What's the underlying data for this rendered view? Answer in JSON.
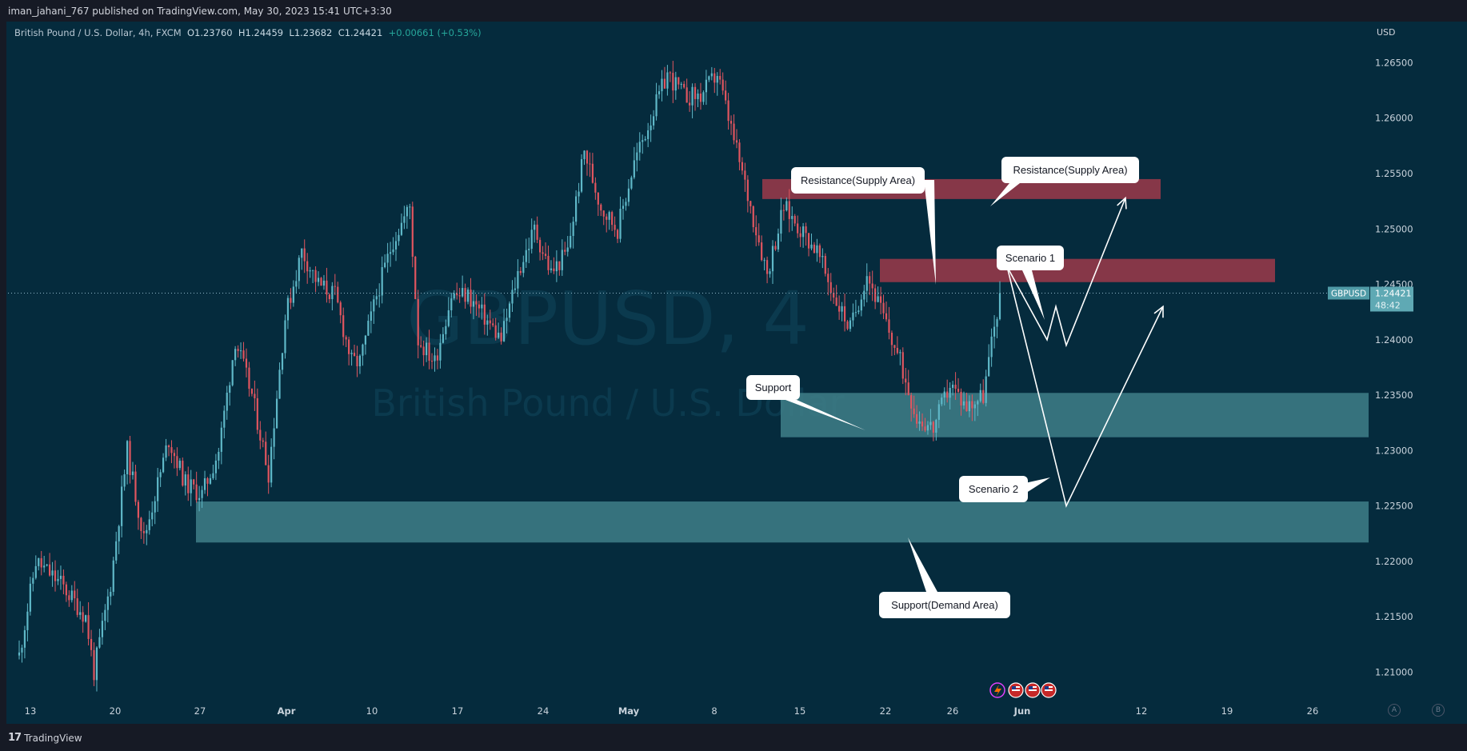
{
  "header": {
    "published": "iman_jahani_767 published on TradingView.com, May 30, 2023 15:41 UTC+3:30"
  },
  "legend": {
    "symbol": "British Pound / U.S. Dollar, 4h, FXCM",
    "open": "O1.23760",
    "high": "H1.24459",
    "low": "L1.23682",
    "close": "C1.24421",
    "change": "+0.00661 (+0.53%)"
  },
  "watermark": {
    "line1": "GBPUSD, 4",
    "line2": "British Pound / U.S. Dollar"
  },
  "currency": "USD",
  "price_tag": {
    "symbol": "GBPUSD",
    "price": "1.24421",
    "countdown": "48:42"
  },
  "footer": {
    "logo_text": "TradingView",
    "logo_mark": "17",
    "btn_a": "A",
    "btn_b": "B"
  },
  "colors": {
    "background": "#052b3d",
    "up_candle": "#5fb8c8",
    "down_candle": "#e0555f",
    "resistance_zone": "#a33a4b",
    "support_zone": "#3f7f88",
    "text": "#d1d4dc"
  },
  "chart_data": {
    "type": "candlestick",
    "symbol": "GBPUSD",
    "timeframe": "4h",
    "y_axis": {
      "ylim": [
        1.2075,
        1.2685
      ],
      "ticks": [
        "1.26500",
        "1.26000",
        "1.25500",
        "1.25000",
        "1.24500",
        "1.24000",
        "1.23500",
        "1.23000",
        "1.22500",
        "1.22000",
        "1.21500",
        "1.21000"
      ],
      "tick_values": [
        1.265,
        1.26,
        1.255,
        1.25,
        1.245,
        1.24,
        1.235,
        1.23,
        1.225,
        1.22,
        1.215,
        1.21
      ]
    },
    "x_axis": {
      "labels": [
        "13",
        "20",
        "27",
        "Apr",
        "10",
        "17",
        "24",
        "May",
        "8",
        "15",
        "22",
        "26",
        "Jun",
        "12",
        "19",
        "26"
      ],
      "bold_labels": [
        "Apr",
        "May",
        "Jun"
      ]
    },
    "price_path": [
      [
        0,
        1.2115
      ],
      [
        2,
        1.22
      ],
      [
        5,
        1.218
      ],
      [
        8,
        1.215
      ],
      [
        9,
        1.21
      ],
      [
        11,
        1.218
      ],
      [
        13,
        1.23
      ],
      [
        15,
        1.222
      ],
      [
        18,
        1.231
      ],
      [
        20,
        1.227
      ],
      [
        22,
        1.226
      ],
      [
        24,
        1.23
      ],
      [
        26,
        1.24
      ],
      [
        28,
        1.235
      ],
      [
        30,
        1.228
      ],
      [
        32,
        1.242
      ],
      [
        34,
        1.248
      ],
      [
        36,
        1.245
      ],
      [
        38,
        1.244
      ],
      [
        40,
        1.238
      ],
      [
        41,
        1.238
      ],
      [
        43,
        1.244
      ],
      [
        45,
        1.249
      ],
      [
        47,
        1.252
      ],
      [
        48,
        1.24
      ],
      [
        50,
        1.238
      ],
      [
        52,
        1.244
      ],
      [
        54,
        1.244
      ],
      [
        56,
        1.242
      ],
      [
        58,
        1.24
      ],
      [
        60,
        1.246
      ],
      [
        62,
        1.25
      ],
      [
        64,
        1.246
      ],
      [
        66,
        1.248
      ],
      [
        68,
        1.257
      ],
      [
        70,
        1.252
      ],
      [
        72,
        1.25
      ],
      [
        74,
        1.256
      ],
      [
        76,
        1.26
      ],
      [
        78,
        1.264
      ],
      [
        80,
        1.262
      ],
      [
        82,
        1.262
      ],
      [
        84,
        1.264
      ],
      [
        86,
        1.258
      ],
      [
        88,
        1.252
      ],
      [
        90,
        1.246
      ],
      [
        92,
        1.252
      ],
      [
        94,
        1.25
      ],
      [
        96,
        1.248
      ],
      [
        98,
        1.244
      ],
      [
        100,
        1.241
      ],
      [
        102,
        1.246
      ],
      [
        104,
        1.242
      ],
      [
        106,
        1.238
      ],
      [
        108,
        1.233
      ],
      [
        110,
        1.232
      ],
      [
        112,
        1.236
      ],
      [
        114,
        1.234
      ],
      [
        116,
        1.235
      ],
      [
        118,
        1.2442
      ]
    ],
    "zones": [
      {
        "label": "Resistance(Supply Area)",
        "kind": "resistance",
        "top": 1.2545,
        "bottom": 1.2527
      },
      {
        "label": "Resistance(Supply Area)",
        "kind": "resistance",
        "top": 1.2473,
        "bottom": 1.2452
      },
      {
        "label": "Support",
        "kind": "support",
        "top": 1.2352,
        "bottom": 1.2312
      },
      {
        "label": "Support(Demand Area)",
        "kind": "support",
        "top": 1.2254,
        "bottom": 1.2217
      }
    ],
    "annotations": [
      {
        "id": "callout_res1",
        "text": "Resistance(Supply Area)"
      },
      {
        "id": "callout_res2",
        "text": "Resistance(Supply Area)"
      },
      {
        "id": "callout_scen1",
        "text": "Scenario 1"
      },
      {
        "id": "callout_support",
        "text": "Support"
      },
      {
        "id": "callout_scen2",
        "text": "Scenario 2"
      },
      {
        "id": "callout_demand",
        "text": "Support(Demand Area)"
      }
    ],
    "scenario_1_path": [
      1.2466,
      1.24,
      1.243,
      1.2395,
      1.2528
    ],
    "scenario_2_path": [
      1.2466,
      1.225,
      1.243
    ],
    "last_price": 1.24421,
    "grid": false
  }
}
